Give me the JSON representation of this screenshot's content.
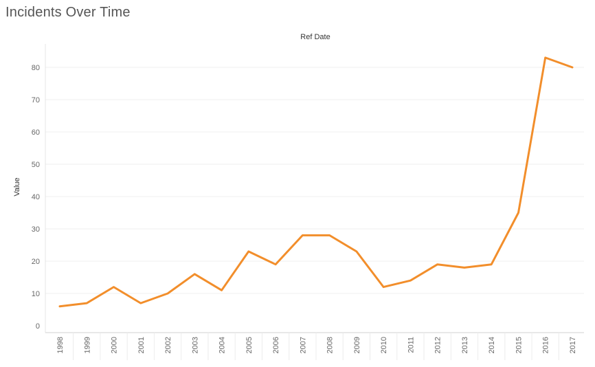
{
  "page": {
    "title": "Incidents Over Time"
  },
  "chart_data": {
    "type": "line",
    "header_label": "Ref Date",
    "ylabel": "Value",
    "x": [
      "1998",
      "1999",
      "2000",
      "2001",
      "2002",
      "2003",
      "2004",
      "2005",
      "2006",
      "2007",
      "2008",
      "2009",
      "2010",
      "2011",
      "2012",
      "2013",
      "2014",
      "2015",
      "2016",
      "2017"
    ],
    "series": [
      {
        "values": [
          6,
          7,
          12,
          7,
          10,
          16,
          11,
          23,
          19,
          28,
          28,
          23,
          12,
          14,
          19,
          18,
          19,
          35,
          83,
          80
        ]
      }
    ],
    "ylim": [
      0,
      85
    ],
    "yticks": [
      0,
      10,
      20,
      30,
      40,
      50,
      60,
      70,
      80
    ],
    "grid": true,
    "line_color": "#F28E2B"
  }
}
